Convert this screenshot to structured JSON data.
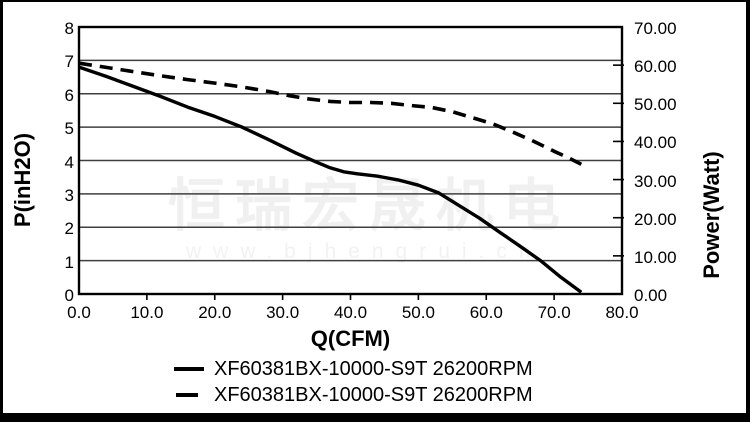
{
  "watermark": {
    "cn": "恒瑞宏晟机电",
    "url": "www.bjhengrui.cn"
  },
  "colors": {
    "background": "#ffffff",
    "frame": "#000000",
    "curve": "#000000",
    "grid": "#3f3f3f",
    "watermark": "#f0f0f0"
  },
  "chart_data": {
    "type": "line",
    "title": "",
    "xlabel": "Q(CFM)",
    "ylabel_left": "P(inH2O)",
    "ylabel_right": "Power(Watt)",
    "grid": "horizontal-only",
    "legend_position": "bottom",
    "x_axis": {
      "min": 0,
      "max": 80,
      "tick_values": [
        0,
        10,
        20,
        30,
        40,
        50,
        60,
        70,
        80
      ],
      "tick_labels": [
        "0.0",
        "10.0",
        "20.0",
        "30.0",
        "40.0",
        "50.0",
        "60.0",
        "70.0",
        "80.0"
      ]
    },
    "y_axis_left": {
      "min": 0,
      "max": 8,
      "tick_values": [
        8,
        7,
        6,
        5,
        4,
        3,
        2,
        1,
        0
      ],
      "tick_labels": [
        "8",
        "7",
        "6",
        "5",
        "4",
        "3",
        "2",
        "1",
        "0"
      ]
    },
    "y_axis_right": {
      "min": 0,
      "max": 70,
      "tick_values": [
        70,
        60,
        50,
        40,
        30,
        20,
        10,
        0
      ],
      "tick_labels": [
        "70.00",
        "60.00",
        "50.00",
        "40.00",
        "30.00",
        "20.00",
        "10.00",
        "0.00"
      ]
    },
    "series": [
      {
        "name": "XF60381BX-10000-S9T 26200RPM",
        "line_style": "solid",
        "axis": "left",
        "color": "#000000",
        "points": [
          [
            0,
            6.8
          ],
          [
            4,
            6.52
          ],
          [
            8,
            6.22
          ],
          [
            12,
            5.92
          ],
          [
            16,
            5.6
          ],
          [
            20,
            5.32
          ],
          [
            24,
            5.0
          ],
          [
            28,
            4.62
          ],
          [
            32,
            4.22
          ],
          [
            35,
            3.95
          ],
          [
            37,
            3.78
          ],
          [
            39,
            3.66
          ],
          [
            41,
            3.6
          ],
          [
            44,
            3.53
          ],
          [
            47,
            3.42
          ],
          [
            50,
            3.26
          ],
          [
            53,
            3.03
          ],
          [
            56,
            2.65
          ],
          [
            59,
            2.27
          ],
          [
            62,
            1.85
          ],
          [
            65,
            1.43
          ],
          [
            68,
            1.0
          ],
          [
            71,
            0.5
          ],
          [
            74,
            0.05
          ]
        ]
      },
      {
        "name": "XF60381BX-10000-S9T 26200RPM",
        "line_style": "dashed",
        "axis": "right",
        "color": "#000000",
        "points": [
          [
            0,
            60.5
          ],
          [
            4,
            59.4
          ],
          [
            8,
            58.3
          ],
          [
            12,
            57.2
          ],
          [
            16,
            56.2
          ],
          [
            20,
            55.3
          ],
          [
            24,
            54.3
          ],
          [
            28,
            53.1
          ],
          [
            31,
            52.0
          ],
          [
            34,
            51.1
          ],
          [
            37,
            50.5
          ],
          [
            40,
            50.2
          ],
          [
            43,
            50.2
          ],
          [
            46,
            50.0
          ],
          [
            49,
            49.4
          ],
          [
            52,
            48.9
          ],
          [
            55,
            47.8
          ],
          [
            58,
            46.2
          ],
          [
            61,
            44.6
          ],
          [
            64,
            42.4
          ],
          [
            67,
            40.0
          ],
          [
            70,
            37.4
          ],
          [
            72,
            35.8
          ],
          [
            74,
            34.0
          ]
        ]
      }
    ]
  }
}
